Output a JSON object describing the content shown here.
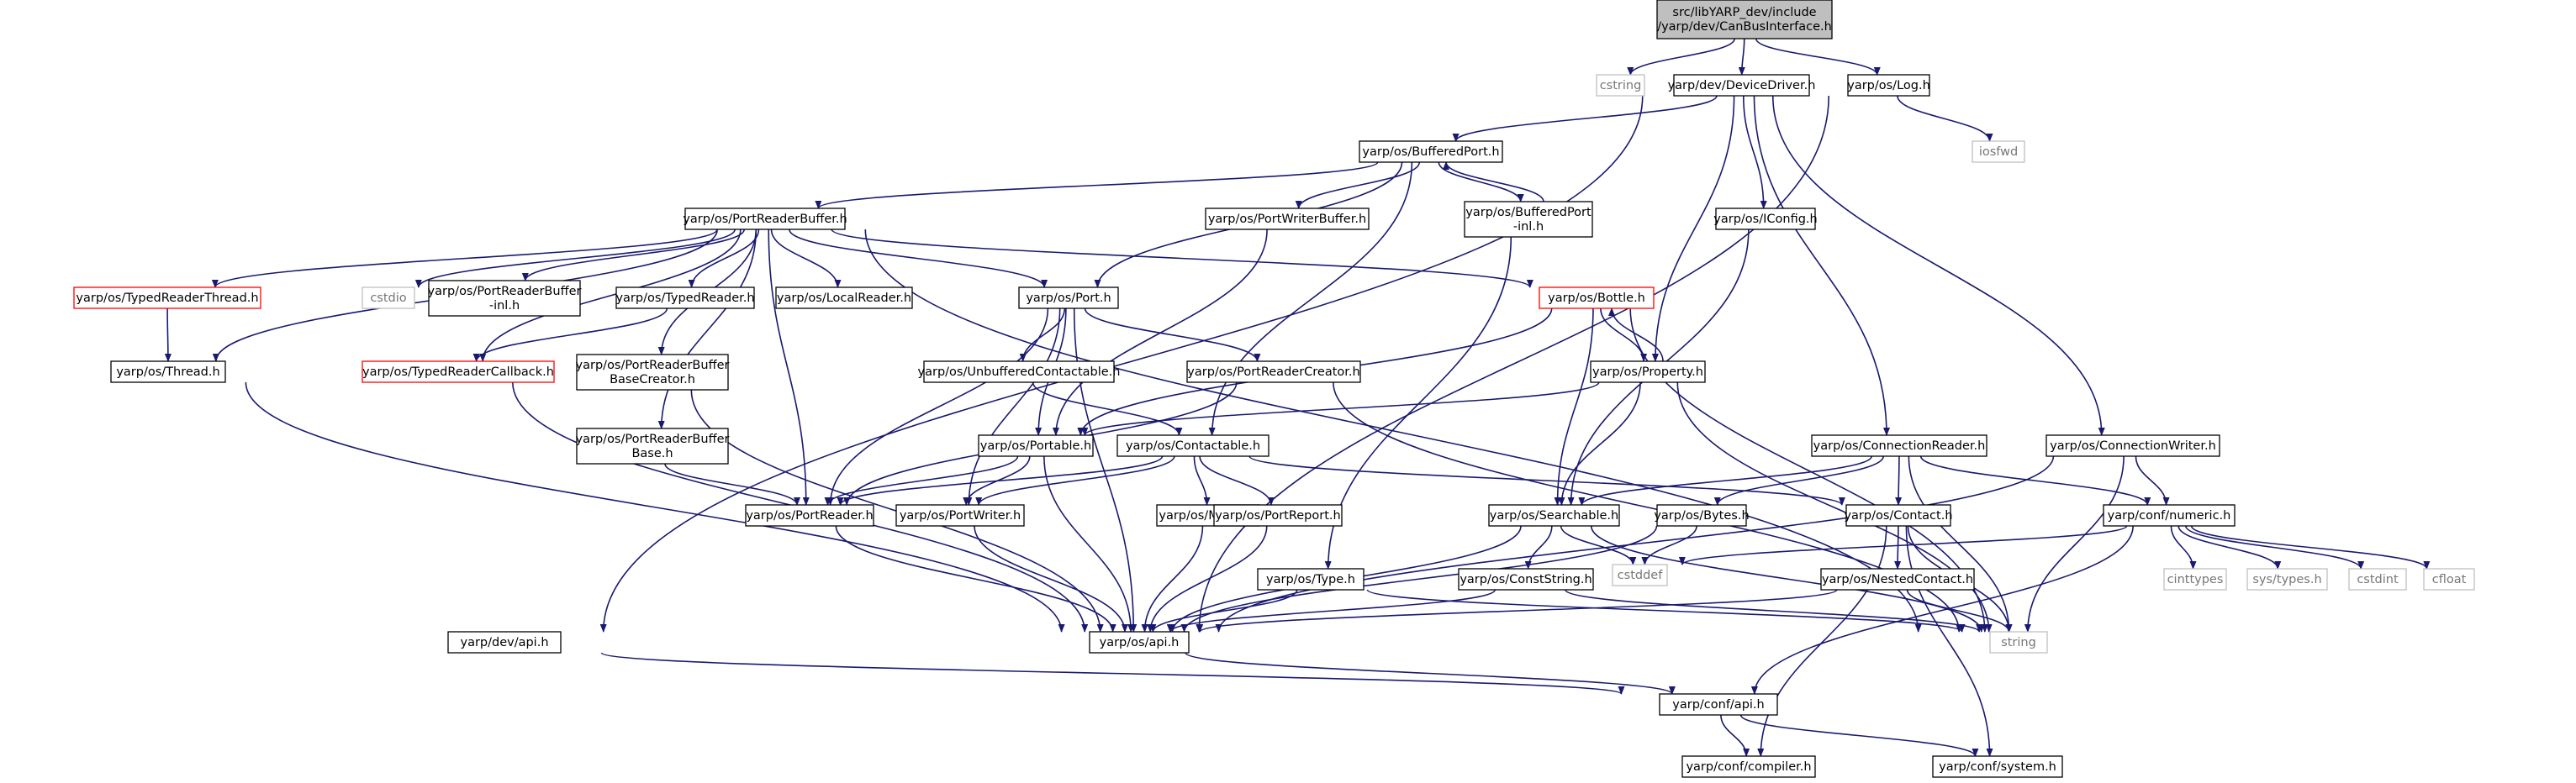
{
  "diagram": {
    "nodes": [
      {
        "id": "root",
        "lines": [
          "src/libYARP_dev/include",
          "/yarp/dev/CanBusInterface.h"
        ],
        "style": "root"
      },
      {
        "id": "cstring",
        "lines": [
          "cstring"
        ],
        "style": "grey"
      },
      {
        "id": "devicedriver",
        "lines": [
          "yarp/dev/DeviceDriver.h"
        ],
        "style": "normal"
      },
      {
        "id": "log",
        "lines": [
          "yarp/os/Log.h"
        ],
        "style": "normal"
      },
      {
        "id": "iosfwd",
        "lines": [
          "iosfwd"
        ],
        "style": "grey"
      },
      {
        "id": "bufferedport",
        "lines": [
          "yarp/os/BufferedPort.h"
        ],
        "style": "normal"
      },
      {
        "id": "portreaderbuffer",
        "lines": [
          "yarp/os/PortReaderBuffer.h"
        ],
        "style": "normal"
      },
      {
        "id": "portwriterbuffer",
        "lines": [
          "yarp/os/PortWriterBuffer.h"
        ],
        "style": "normal"
      },
      {
        "id": "bufferedportinl",
        "lines": [
          "yarp/os/BufferedPort",
          "-inl.h"
        ],
        "style": "normal"
      },
      {
        "id": "iconfig",
        "lines": [
          "yarp/os/IConfig.h"
        ],
        "style": "normal"
      },
      {
        "id": "typedreaderthread",
        "lines": [
          "yarp/os/TypedReaderThread.h"
        ],
        "style": "red"
      },
      {
        "id": "cstdio",
        "lines": [
          "cstdio"
        ],
        "style": "grey"
      },
      {
        "id": "portreaderbufferinl",
        "lines": [
          "yarp/os/PortReaderBuffer",
          "-inl.h"
        ],
        "style": "normal"
      },
      {
        "id": "typedreader",
        "lines": [
          "yarp/os/TypedReader.h"
        ],
        "style": "normal"
      },
      {
        "id": "localreader",
        "lines": [
          "yarp/os/LocalReader.h"
        ],
        "style": "normal"
      },
      {
        "id": "port",
        "lines": [
          "yarp/os/Port.h"
        ],
        "style": "normal"
      },
      {
        "id": "bottle",
        "lines": [
          "yarp/os/Bottle.h"
        ],
        "style": "red"
      },
      {
        "id": "thread",
        "lines": [
          "yarp/os/Thread.h"
        ],
        "style": "normal"
      },
      {
        "id": "typedreadercallback",
        "lines": [
          "yarp/os/TypedReaderCallback.h"
        ],
        "style": "red"
      },
      {
        "id": "prbbasecreator",
        "lines": [
          "yarp/os/PortReaderBuffer",
          "BaseCreator.h"
        ],
        "style": "normal"
      },
      {
        "id": "unbufferedcontactable",
        "lines": [
          "yarp/os/UnbufferedContactable.h"
        ],
        "style": "normal"
      },
      {
        "id": "portreadercreator",
        "lines": [
          "yarp/os/PortReaderCreator.h"
        ],
        "style": "normal"
      },
      {
        "id": "property",
        "lines": [
          "yarp/os/Property.h"
        ],
        "style": "normal"
      },
      {
        "id": "prbbase",
        "lines": [
          "yarp/os/PortReaderBuffer",
          "Base.h"
        ],
        "style": "normal"
      },
      {
        "id": "portable",
        "lines": [
          "yarp/os/Portable.h"
        ],
        "style": "normal"
      },
      {
        "id": "contactable",
        "lines": [
          "yarp/os/Contactable.h"
        ],
        "style": "normal"
      },
      {
        "id": "connectionreader",
        "lines": [
          "yarp/os/ConnectionReader.h"
        ],
        "style": "normal"
      },
      {
        "id": "connectionwriter",
        "lines": [
          "yarp/os/ConnectionWriter.h"
        ],
        "style": "normal"
      },
      {
        "id": "portreader",
        "lines": [
          "yarp/os/PortReader.h"
        ],
        "style": "normal"
      },
      {
        "id": "portwriter",
        "lines": [
          "yarp/os/PortWriter.h"
        ],
        "style": "normal"
      },
      {
        "id": "mutex",
        "lines": [
          "yarp/os/Mutex.h"
        ],
        "style": "normal"
      },
      {
        "id": "portreport",
        "lines": [
          "yarp/os/PortReport.h"
        ],
        "style": "normal"
      },
      {
        "id": "searchable",
        "lines": [
          "yarp/os/Searchable.h"
        ],
        "style": "normal"
      },
      {
        "id": "bytes",
        "lines": [
          "yarp/os/Bytes.h"
        ],
        "style": "normal"
      },
      {
        "id": "contact",
        "lines": [
          "yarp/os/Contact.h"
        ],
        "style": "normal"
      },
      {
        "id": "numeric",
        "lines": [
          "yarp/conf/numeric.h"
        ],
        "style": "normal"
      },
      {
        "id": "cstddef",
        "lines": [
          "cstddef"
        ],
        "style": "grey"
      },
      {
        "id": "cinttypes",
        "lines": [
          "cinttypes"
        ],
        "style": "grey"
      },
      {
        "id": "systypes",
        "lines": [
          "sys/types.h"
        ],
        "style": "grey"
      },
      {
        "id": "cstdint",
        "lines": [
          "cstdint"
        ],
        "style": "grey"
      },
      {
        "id": "cfloat",
        "lines": [
          "cfloat"
        ],
        "style": "grey"
      },
      {
        "id": "type",
        "lines": [
          "yarp/os/Type.h"
        ],
        "style": "normal"
      },
      {
        "id": "conststring",
        "lines": [
          "yarp/os/ConstString.h"
        ],
        "style": "normal"
      },
      {
        "id": "nestedcontact",
        "lines": [
          "yarp/os/NestedContact.h"
        ],
        "style": "normal"
      },
      {
        "id": "osapi",
        "lines": [
          "yarp/os/api.h"
        ],
        "style": "normal"
      },
      {
        "id": "string",
        "lines": [
          "string"
        ],
        "style": "grey"
      },
      {
        "id": "devapi",
        "lines": [
          "yarp/dev/api.h"
        ],
        "style": "normal"
      },
      {
        "id": "confapi",
        "lines": [
          "yarp/conf/api.h"
        ],
        "style": "normal"
      },
      {
        "id": "compiler",
        "lines": [
          "yarp/conf/compiler.h"
        ],
        "style": "normal"
      },
      {
        "id": "system",
        "lines": [
          "yarp/conf/system.h"
        ],
        "style": "normal"
      }
    ],
    "edges": [
      [
        "root",
        "cstring"
      ],
      [
        "root",
        "devicedriver"
      ],
      [
        "root",
        "log"
      ],
      [
        "log",
        "iosfwd"
      ],
      [
        "log",
        "osapi"
      ],
      [
        "devicedriver",
        "bufferedport"
      ],
      [
        "devicedriver",
        "iconfig"
      ],
      [
        "devicedriver",
        "property"
      ],
      [
        "devicedriver",
        "connectionreader"
      ],
      [
        "devicedriver",
        "connectionwriter"
      ],
      [
        "devicedriver",
        "devapi"
      ],
      [
        "bufferedport",
        "portreaderbuffer"
      ],
      [
        "bufferedport",
        "portwriterbuffer"
      ],
      [
        "bufferedport",
        "bufferedportinl"
      ],
      [
        "bufferedport",
        "port"
      ],
      [
        "bufferedport",
        "contactable"
      ],
      [
        "bufferedportinl",
        "bufferedport"
      ],
      [
        "bufferedportinl",
        "type"
      ],
      [
        "portwriterbuffer",
        "portable"
      ],
      [
        "iconfig",
        "searchable"
      ],
      [
        "portreaderbuffer",
        "typedreaderthread"
      ],
      [
        "portreaderbuffer",
        "cstdio"
      ],
      [
        "portreaderbuffer",
        "portreaderbufferinl"
      ],
      [
        "portreaderbuffer",
        "typedreader"
      ],
      [
        "portreaderbuffer",
        "localreader"
      ],
      [
        "portreaderbuffer",
        "port"
      ],
      [
        "portreaderbuffer",
        "bottle"
      ],
      [
        "portreaderbuffer",
        "thread"
      ],
      [
        "portreaderbuffer",
        "typedreadercallback"
      ],
      [
        "portreaderbuffer",
        "prbbasecreator"
      ],
      [
        "portreaderbuffer",
        "prbbase"
      ],
      [
        "portreaderbuffer",
        "portreader"
      ],
      [
        "portreaderbuffer",
        "string"
      ],
      [
        "typedreaderthread",
        "thread"
      ],
      [
        "typedreader",
        "typedreadercallback"
      ],
      [
        "thread",
        "osapi"
      ],
      [
        "typedreadercallback",
        "osapi"
      ],
      [
        "port",
        "unbufferedcontactable"
      ],
      [
        "port",
        "portreadercreator"
      ],
      [
        "port",
        "portable"
      ],
      [
        "port",
        "portreader"
      ],
      [
        "port",
        "portwriter"
      ],
      [
        "port",
        "osapi"
      ],
      [
        "bottle",
        "property"
      ],
      [
        "bottle",
        "portable"
      ],
      [
        "bottle",
        "searchable"
      ],
      [
        "bottle",
        "string"
      ],
      [
        "property",
        "bottle"
      ],
      [
        "property",
        "portable"
      ],
      [
        "property",
        "searchable"
      ],
      [
        "property",
        "string"
      ],
      [
        "prbbasecreator",
        "osapi"
      ],
      [
        "unbufferedcontactable",
        "contactable"
      ],
      [
        "portreadercreator",
        "portreader"
      ],
      [
        "portreadercreator",
        "string"
      ],
      [
        "prbbase",
        "portreader"
      ],
      [
        "portable",
        "portreader"
      ],
      [
        "portable",
        "portwriter"
      ],
      [
        "portable",
        "osapi"
      ],
      [
        "contactable",
        "portreader"
      ],
      [
        "contactable",
        "portwriter"
      ],
      [
        "contactable",
        "mutex"
      ],
      [
        "contactable",
        "portreport"
      ],
      [
        "contactable",
        "contact"
      ],
      [
        "connectionreader",
        "searchable"
      ],
      [
        "connectionreader",
        "bytes"
      ],
      [
        "connectionreader",
        "contact"
      ],
      [
        "connectionreader",
        "numeric"
      ],
      [
        "connectionreader",
        "string"
      ],
      [
        "connectionwriter",
        "numeric"
      ],
      [
        "connectionwriter",
        "osapi"
      ],
      [
        "connectionwriter",
        "string"
      ],
      [
        "portreader",
        "osapi"
      ],
      [
        "portwriter",
        "osapi"
      ],
      [
        "mutex",
        "osapi"
      ],
      [
        "portreport",
        "osapi"
      ],
      [
        "searchable",
        "conststring"
      ],
      [
        "searchable",
        "cstddef"
      ],
      [
        "searchable",
        "osapi"
      ],
      [
        "searchable",
        "string"
      ],
      [
        "bytes",
        "cstddef"
      ],
      [
        "bytes",
        "osapi"
      ],
      [
        "contact",
        "nestedcontact"
      ],
      [
        "contact",
        "string"
      ],
      [
        "contact",
        "compiler"
      ],
      [
        "contact",
        "system"
      ],
      [
        "numeric",
        "cstddef"
      ],
      [
        "numeric",
        "cinttypes"
      ],
      [
        "numeric",
        "systypes"
      ],
      [
        "numeric",
        "cstdint"
      ],
      [
        "numeric",
        "cfloat"
      ],
      [
        "numeric",
        "confapi"
      ],
      [
        "type",
        "osapi"
      ],
      [
        "type",
        "string"
      ],
      [
        "conststring",
        "osapi"
      ],
      [
        "conststring",
        "string"
      ],
      [
        "nestedcontact",
        "osapi"
      ],
      [
        "nestedcontact",
        "string"
      ],
      [
        "osapi",
        "confapi"
      ],
      [
        "devapi",
        "confapi"
      ],
      [
        "confapi",
        "compiler"
      ],
      [
        "confapi",
        "system"
      ]
    ]
  }
}
